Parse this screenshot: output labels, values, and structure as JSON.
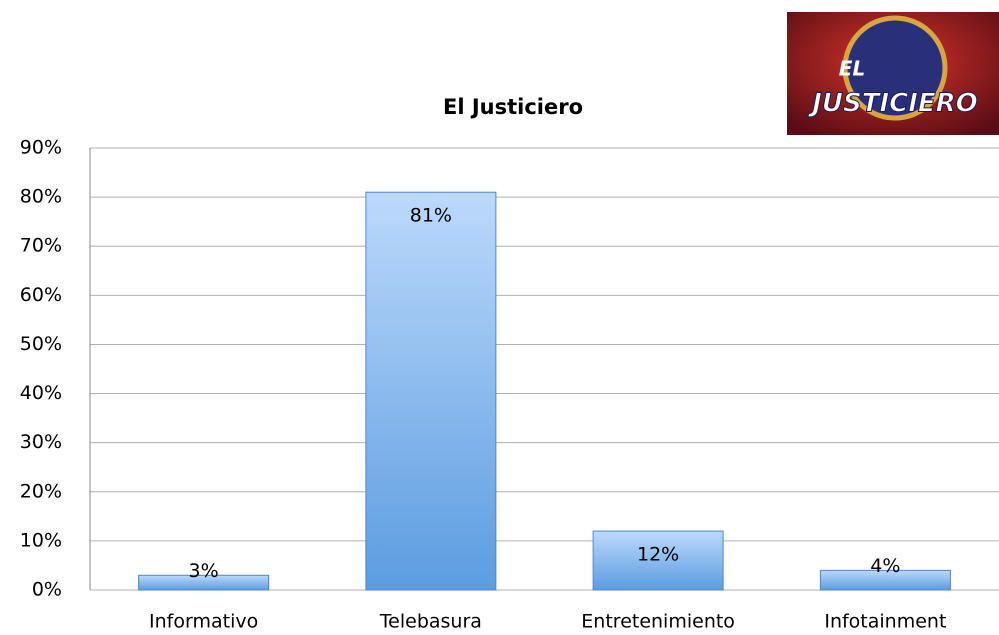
{
  "chart_data": {
    "type": "bar",
    "title": "El Justiciero",
    "logo_text": [
      "EL",
      "JUSTICIERO"
    ],
    "categories": [
      "Informativo",
      "Telebasura",
      "Entretenimiento",
      "Infotainment"
    ],
    "values": [
      3,
      81,
      12,
      4
    ],
    "value_labels": [
      "3%",
      "81%",
      "12%",
      "4%"
    ],
    "color": "#7fb2ea",
    "ylim": [
      0,
      90
    ],
    "yticks": [
      {
        "value": 0,
        "label": "0%"
      },
      {
        "value": 10,
        "label": "10%"
      },
      {
        "value": 20,
        "label": "20%"
      },
      {
        "value": 30,
        "label": "30%"
      },
      {
        "value": 40,
        "label": "40%"
      },
      {
        "value": 50,
        "label": "50%"
      },
      {
        "value": 60,
        "label": "60%"
      },
      {
        "value": 70,
        "label": "70%"
      },
      {
        "value": 80,
        "label": "80%"
      },
      {
        "value": 90,
        "label": "90%"
      }
    ],
    "grid": true
  }
}
